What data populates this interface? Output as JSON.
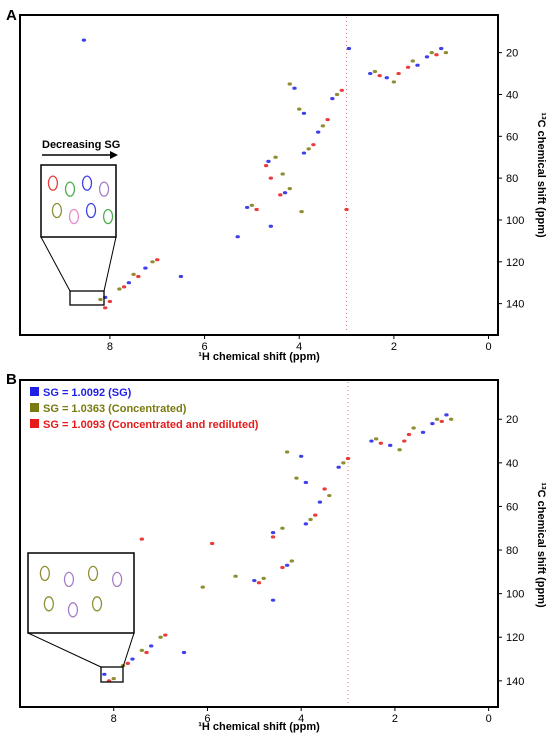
{
  "colors": {
    "blue": "#1f1fe6",
    "olive": "#7a7a10",
    "red": "#e61a1a",
    "green": "#2ca02c",
    "purple": "#9467bd",
    "pink": "#e377c2"
  },
  "chart_data": [
    {
      "panel_label": "A",
      "type": "scatter",
      "subtype": "2D NMR 1H-13C HSQC spectrum overlay",
      "xlabel": "¹H chemical shift (ppm)",
      "ylabel": "¹³C chemical shift (ppm)",
      "xlim": [
        9.9,
        -0.2
      ],
      "ylim": [
        2,
        155
      ],
      "xticks": [
        "8",
        "6",
        "4",
        "2",
        "0"
      ],
      "yticks": [
        "20",
        "40",
        "60",
        "80",
        "100",
        "120",
        "140"
      ],
      "annotation": "Decreasing SG",
      "series": [
        {
          "color_key": "blue",
          "points": [
            [
              8.55,
              14
            ],
            [
              8.1,
              137
            ],
            [
              7.6,
              130
            ],
            [
              7.25,
              123
            ],
            [
              5.1,
              94
            ],
            [
              4.3,
              87
            ],
            [
              4.65,
              72
            ],
            [
              3.9,
              68
            ],
            [
              3.6,
              58
            ],
            [
              3.3,
              42
            ],
            [
              2.5,
              30
            ],
            [
              2.15,
              32
            ],
            [
              1.5,
              26
            ],
            [
              1.3,
              22
            ],
            [
              1.0,
              18
            ],
            [
              3.9,
              49
            ],
            [
              4.1,
              37
            ],
            [
              6.5,
              127
            ],
            [
              4.6,
              103
            ],
            [
              5.3,
              108
            ],
            [
              2.95,
              18
            ]
          ]
        },
        {
          "color_key": "olive",
          "points": [
            [
              8.2,
              138
            ],
            [
              7.8,
              133
            ],
            [
              7.5,
              126
            ],
            [
              7.1,
              120
            ],
            [
              5.0,
              93
            ],
            [
              4.2,
              85
            ],
            [
              4.5,
              70
            ],
            [
              3.8,
              66
            ],
            [
              3.5,
              55
            ],
            [
              3.2,
              40
            ],
            [
              2.4,
              29
            ],
            [
              2.0,
              34
            ],
            [
              1.6,
              24
            ],
            [
              1.2,
              20
            ],
            [
              0.9,
              20
            ],
            [
              4.0,
              47
            ],
            [
              4.2,
              35
            ],
            [
              3.95,
              96
            ],
            [
              4.35,
              78
            ]
          ]
        },
        {
          "color_key": "red",
          "points": [
            [
              8.0,
              139
            ],
            [
              7.7,
              132
            ],
            [
              7.4,
              127
            ],
            [
              7.0,
              119
            ],
            [
              4.9,
              95
            ],
            [
              4.4,
              88
            ],
            [
              4.7,
              74
            ],
            [
              3.7,
              64
            ],
            [
              3.4,
              52
            ],
            [
              3.1,
              38
            ],
            [
              2.3,
              31
            ],
            [
              1.9,
              30
            ],
            [
              1.7,
              27
            ],
            [
              1.1,
              21
            ],
            [
              8.5,
              80
            ],
            [
              4.6,
              80
            ],
            [
              3.0,
              95
            ],
            [
              8.1,
              142
            ]
          ]
        }
      ],
      "inset_ellipses": [
        {
          "color_key": "red"
        },
        {
          "color_key": "green"
        },
        {
          "color_key": "blue"
        },
        {
          "color_key": "purple"
        },
        {
          "color_key": "olive"
        },
        {
          "color_key": "pink"
        },
        {
          "color_key": "blue"
        },
        {
          "color_key": "green"
        }
      ]
    },
    {
      "panel_label": "B",
      "type": "scatter",
      "subtype": "2D NMR 1H-13C HSQC spectrum overlay",
      "xlabel": "¹H chemical shift (ppm)",
      "ylabel": "¹³C chemical shift (ppm)",
      "xlim": [
        10.0,
        -0.2
      ],
      "ylim": [
        2,
        152
      ],
      "xticks": [
        "8",
        "6",
        "4",
        "2",
        "0"
      ],
      "yticks": [
        "20",
        "40",
        "60",
        "80",
        "100",
        "120",
        "140"
      ],
      "legend_position": "top-left",
      "series": [
        {
          "name": "SG = 1.0092 (SG)",
          "color_key": "blue",
          "points": [
            [
              8.2,
              137
            ],
            [
              7.6,
              130
            ],
            [
              7.2,
              124
            ],
            [
              5.0,
              94
            ],
            [
              4.3,
              87
            ],
            [
              4.6,
              72
            ],
            [
              3.9,
              68
            ],
            [
              3.6,
              58
            ],
            [
              3.2,
              42
            ],
            [
              2.5,
              30
            ],
            [
              2.1,
              32
            ],
            [
              1.4,
              26
            ],
            [
              1.2,
              22
            ],
            [
              0.9,
              18
            ],
            [
              3.9,
              49
            ],
            [
              4.0,
              37
            ],
            [
              6.5,
              127
            ],
            [
              4.6,
              103
            ]
          ]
        },
        {
          "name": "SG = 1.0363 (Concentrated)",
          "color_key": "olive",
          "points": [
            [
              8.0,
              139
            ],
            [
              7.8,
              133
            ],
            [
              7.4,
              126
            ],
            [
              7.0,
              120
            ],
            [
              4.8,
              93
            ],
            [
              4.2,
              85
            ],
            [
              4.4,
              70
            ],
            [
              3.8,
              66
            ],
            [
              3.4,
              55
            ],
            [
              3.1,
              40
            ],
            [
              2.4,
              29
            ],
            [
              1.9,
              34
            ],
            [
              1.6,
              24
            ],
            [
              1.1,
              20
            ],
            [
              0.8,
              20
            ],
            [
              4.1,
              47
            ],
            [
              4.3,
              35
            ],
            [
              6.1,
              97
            ],
            [
              5.4,
              92
            ]
          ]
        },
        {
          "name": "SG = 1.0093 (Concentrated and rediluted)",
          "color_key": "red",
          "points": [
            [
              8.1,
              140
            ],
            [
              7.7,
              132
            ],
            [
              7.3,
              127
            ],
            [
              6.9,
              119
            ],
            [
              4.9,
              95
            ],
            [
              4.4,
              88
            ],
            [
              4.6,
              74
            ],
            [
              3.7,
              64
            ],
            [
              3.5,
              52
            ],
            [
              3.0,
              38
            ],
            [
              2.3,
              31
            ],
            [
              1.8,
              30
            ],
            [
              1.7,
              27
            ],
            [
              1.0,
              21
            ],
            [
              7.4,
              75
            ],
            [
              5.9,
              77
            ]
          ]
        }
      ],
      "inset_ellipses": [
        {
          "color_key": "olive"
        },
        {
          "color_key": "purple"
        },
        {
          "color_key": "olive"
        },
        {
          "color_key": "purple"
        },
        {
          "color_key": "olive"
        },
        {
          "color_key": "purple"
        },
        {
          "color_key": "olive"
        }
      ]
    }
  ]
}
